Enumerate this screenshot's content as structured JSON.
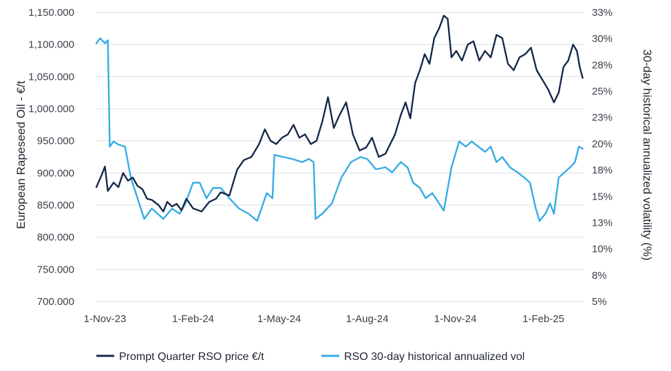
{
  "chart_data": {
    "type": "line",
    "title": "",
    "x_ticks": [
      "1-Nov-23",
      "1-Feb-24",
      "1-May-24",
      "1-Aug-24",
      "1-Nov-24",
      "1-Feb-25"
    ],
    "x_range": [
      "2023-10-23",
      "2025-03-15"
    ],
    "y_left": {
      "label": "European Rapeseed Oil - €/t",
      "range": [
        700,
        1150
      ],
      "ticks": [
        "700.000",
        "750.000",
        "800.000",
        "850.000",
        "900.000",
        "950.000",
        "1,000.000",
        "1,050.000",
        "1,100.000",
        "1,150.000"
      ]
    },
    "y_right": {
      "label": "30-day historical annualized volatility (%)",
      "range": [
        5,
        33
      ],
      "ticks": [
        "5%",
        "8%",
        "10%",
        "13%",
        "15%",
        "18%",
        "20%",
        "23%",
        "25%",
        "28%",
        "30%",
        "33%"
      ]
    },
    "grid": true,
    "legend_position": "bottom",
    "series": [
      {
        "name": "Prompt Quarter RSO price €/t",
        "axis": "left",
        "color": "#15294a",
        "points": [
          [
            "2023-10-23",
            878
          ],
          [
            "2023-10-28",
            895
          ],
          [
            "2023-11-01",
            910
          ],
          [
            "2023-11-04",
            872
          ],
          [
            "2023-11-10",
            885
          ],
          [
            "2023-11-15",
            878
          ],
          [
            "2023-11-20",
            900
          ],
          [
            "2023-11-25",
            888
          ],
          [
            "2023-11-30",
            893
          ],
          [
            "2023-12-05",
            880
          ],
          [
            "2023-12-10",
            875
          ],
          [
            "2023-12-15",
            860
          ],
          [
            "2023-12-20",
            858
          ],
          [
            "2023-12-27",
            850
          ],
          [
            "2024-01-01",
            840
          ],
          [
            "2024-01-05",
            855
          ],
          [
            "2024-01-10",
            848
          ],
          [
            "2024-01-15",
            852
          ],
          [
            "2024-01-20",
            842
          ],
          [
            "2024-01-25",
            860
          ],
          [
            "2024-02-01",
            845
          ],
          [
            "2024-02-10",
            840
          ],
          [
            "2024-02-18",
            855
          ],
          [
            "2024-02-25",
            860
          ],
          [
            "2024-03-01",
            870
          ],
          [
            "2024-03-10",
            865
          ],
          [
            "2024-03-18",
            905
          ],
          [
            "2024-03-25",
            920
          ],
          [
            "2024-04-02",
            925
          ],
          [
            "2024-04-10",
            945
          ],
          [
            "2024-04-16",
            968
          ],
          [
            "2024-04-22",
            950
          ],
          [
            "2024-04-28",
            945
          ],
          [
            "2024-05-04",
            955
          ],
          [
            "2024-05-10",
            960
          ],
          [
            "2024-05-16",
            975
          ],
          [
            "2024-05-22",
            955
          ],
          [
            "2024-05-28",
            960
          ],
          [
            "2024-06-03",
            945
          ],
          [
            "2024-06-09",
            950
          ],
          [
            "2024-06-15",
            980
          ],
          [
            "2024-06-21",
            1018
          ],
          [
            "2024-06-27",
            970
          ],
          [
            "2024-07-03",
            990
          ],
          [
            "2024-07-10",
            1010
          ],
          [
            "2024-07-17",
            960
          ],
          [
            "2024-07-24",
            935
          ],
          [
            "2024-07-31",
            940
          ],
          [
            "2024-08-06",
            955
          ],
          [
            "2024-08-13",
            925
          ],
          [
            "2024-08-20",
            930
          ],
          [
            "2024-08-25",
            945
          ],
          [
            "2024-08-30",
            960
          ],
          [
            "2024-09-05",
            990
          ],
          [
            "2024-09-10",
            1010
          ],
          [
            "2024-09-15",
            985
          ],
          [
            "2024-09-20",
            1040
          ],
          [
            "2024-09-25",
            1060
          ],
          [
            "2024-09-30",
            1085
          ],
          [
            "2024-10-05",
            1070
          ],
          [
            "2024-10-10",
            1110
          ],
          [
            "2024-10-15",
            1125
          ],
          [
            "2024-10-20",
            1145
          ],
          [
            "2024-10-24",
            1140
          ],
          [
            "2024-10-28",
            1080
          ],
          [
            "2024-11-02",
            1090
          ],
          [
            "2024-11-08",
            1075
          ],
          [
            "2024-11-14",
            1100
          ],
          [
            "2024-11-20",
            1105
          ],
          [
            "2024-11-26",
            1075
          ],
          [
            "2024-12-02",
            1090
          ],
          [
            "2024-12-08",
            1080
          ],
          [
            "2024-12-14",
            1115
          ],
          [
            "2024-12-20",
            1110
          ],
          [
            "2024-12-26",
            1070
          ],
          [
            "2025-01-01",
            1060
          ],
          [
            "2025-01-07",
            1080
          ],
          [
            "2025-01-13",
            1085
          ],
          [
            "2025-01-19",
            1095
          ],
          [
            "2025-01-25",
            1060
          ],
          [
            "2025-01-31",
            1045
          ],
          [
            "2025-02-06",
            1030
          ],
          [
            "2025-02-12",
            1010
          ],
          [
            "2025-02-17",
            1025
          ],
          [
            "2025-02-22",
            1065
          ],
          [
            "2025-02-27",
            1075
          ],
          [
            "2025-03-04",
            1100
          ],
          [
            "2025-03-08",
            1090
          ],
          [
            "2025-03-11",
            1065
          ],
          [
            "2025-03-14",
            1048
          ]
        ]
      },
      {
        "name": "RSO 30-day historical annualized vol",
        "axis": "right",
        "color": "#35ace4",
        "points": [
          [
            "2023-10-23",
            30.0
          ],
          [
            "2023-10-27",
            30.5
          ],
          [
            "2023-11-01",
            30.0
          ],
          [
            "2023-11-04",
            30.3
          ],
          [
            "2023-11-06",
            20.0
          ],
          [
            "2023-11-10",
            20.5
          ],
          [
            "2023-11-15",
            20.2
          ],
          [
            "2023-11-22",
            20.0
          ],
          [
            "2023-11-28",
            17.0
          ],
          [
            "2023-12-05",
            15.0
          ],
          [
            "2023-12-12",
            13.0
          ],
          [
            "2023-12-20",
            14.0
          ],
          [
            "2024-01-01",
            13.0
          ],
          [
            "2024-01-10",
            14.0
          ],
          [
            "2024-01-18",
            13.5
          ],
          [
            "2024-01-24",
            14.5
          ],
          [
            "2024-02-01",
            16.5
          ],
          [
            "2024-02-08",
            16.5
          ],
          [
            "2024-02-15",
            15.0
          ],
          [
            "2024-02-22",
            16.0
          ],
          [
            "2024-03-01",
            16.0
          ],
          [
            "2024-03-10",
            15.0
          ],
          [
            "2024-03-20",
            14.0
          ],
          [
            "2024-03-30",
            13.5
          ],
          [
            "2024-04-08",
            12.8
          ],
          [
            "2024-04-18",
            15.5
          ],
          [
            "2024-04-24",
            15.0
          ],
          [
            "2024-04-26",
            19.2
          ],
          [
            "2024-05-05",
            19.0
          ],
          [
            "2024-05-15",
            18.8
          ],
          [
            "2024-05-25",
            18.5
          ],
          [
            "2024-06-01",
            18.8
          ],
          [
            "2024-06-06",
            18.5
          ],
          [
            "2024-06-08",
            13.0
          ],
          [
            "2024-06-15",
            13.5
          ],
          [
            "2024-06-25",
            14.5
          ],
          [
            "2024-07-05",
            17.0
          ],
          [
            "2024-07-15",
            18.5
          ],
          [
            "2024-07-25",
            19.0
          ],
          [
            "2024-08-01",
            18.8
          ],
          [
            "2024-08-10",
            17.8
          ],
          [
            "2024-08-20",
            18.0
          ],
          [
            "2024-08-27",
            17.5
          ],
          [
            "2024-09-05",
            18.5
          ],
          [
            "2024-09-12",
            18.0
          ],
          [
            "2024-09-18",
            16.5
          ],
          [
            "2024-09-25",
            16.0
          ],
          [
            "2024-10-01",
            15.0
          ],
          [
            "2024-10-08",
            15.5
          ],
          [
            "2024-10-15",
            14.5
          ],
          [
            "2024-10-20",
            13.8
          ],
          [
            "2024-10-28",
            18.0
          ],
          [
            "2024-11-05",
            20.5
          ],
          [
            "2024-11-12",
            20.0
          ],
          [
            "2024-11-18",
            20.5
          ],
          [
            "2024-11-25",
            20.0
          ],
          [
            "2024-12-02",
            19.5
          ],
          [
            "2024-12-08",
            20.0
          ],
          [
            "2024-12-14",
            18.5
          ],
          [
            "2024-12-20",
            19.0
          ],
          [
            "2024-12-28",
            18.0
          ],
          [
            "2025-01-05",
            17.5
          ],
          [
            "2025-01-12",
            17.0
          ],
          [
            "2025-01-18",
            16.5
          ],
          [
            "2025-01-24",
            14.0
          ],
          [
            "2025-01-28",
            12.8
          ],
          [
            "2025-02-03",
            13.5
          ],
          [
            "2025-02-08",
            14.5
          ],
          [
            "2025-02-12",
            13.5
          ],
          [
            "2025-02-17",
            17.0
          ],
          [
            "2025-02-23",
            17.5
          ],
          [
            "2025-03-01",
            18.0
          ],
          [
            "2025-03-06",
            18.5
          ],
          [
            "2025-03-10",
            20.0
          ],
          [
            "2025-03-14",
            19.8
          ]
        ]
      }
    ]
  }
}
